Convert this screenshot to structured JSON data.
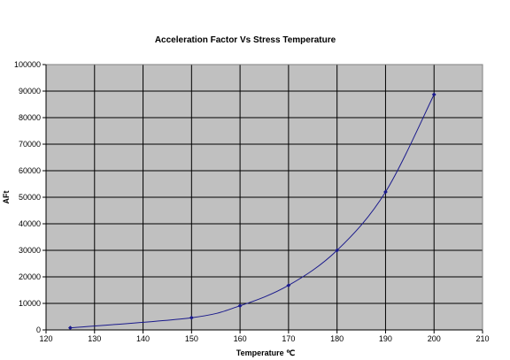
{
  "chart_data": {
    "type": "scatter",
    "title": "Acceleration  Factor Vs Stress Temperature",
    "xlabel": "Temperature ℃",
    "ylabel": "AFt",
    "xlim": [
      120,
      210
    ],
    "ylim": [
      0,
      100000
    ],
    "x_ticks": [
      "120",
      "130",
      "140",
      "150",
      "160",
      "170",
      "180",
      "190",
      "200",
      "210"
    ],
    "y_ticks": [
      "0",
      "10000",
      "20000",
      "30000",
      "40000",
      "50000",
      "60000",
      "70000",
      "80000",
      "90000",
      "100000"
    ],
    "grid": true,
    "legend": "none",
    "series": [
      {
        "points": [
          {
            "x": 125,
            "y": 800
          },
          {
            "x": 150,
            "y": 4600
          },
          {
            "x": 160,
            "y": 9100
          },
          {
            "x": 170,
            "y": 16800
          },
          {
            "x": 180,
            "y": 30000
          },
          {
            "x": 190,
            "y": 52000
          },
          {
            "x": 200,
            "y": 88700
          }
        ],
        "color": "#1a1a8c",
        "smooth": true
      }
    ],
    "plot_background": "#c0c0c0",
    "grid_color": "#000000"
  }
}
